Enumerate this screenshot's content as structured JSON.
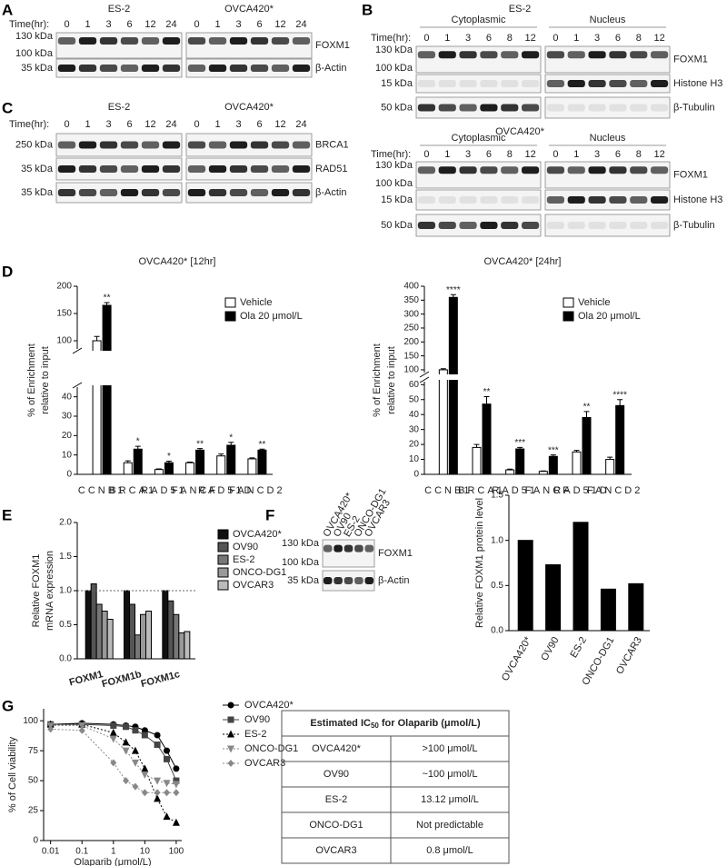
{
  "panel_labels": [
    "A",
    "B",
    "C",
    "D",
    "E",
    "F",
    "G"
  ],
  "blot_A": {
    "time_label": "Time(hr):",
    "groups": [
      {
        "name": "ES-2",
        "lanes": [
          "0",
          "1",
          "3",
          "6",
          "12",
          "24"
        ]
      },
      {
        "name": "OVCA420*",
        "lanes": [
          "0",
          "1",
          "3",
          "6",
          "12",
          "24"
        ]
      }
    ],
    "rows": [
      {
        "label": "FOXM1",
        "markers": [
          "130 kDa",
          "100 kDa"
        ]
      },
      {
        "label": "β-Actin",
        "markers": [
          "35 kDa"
        ]
      }
    ]
  },
  "blot_B_ES2": {
    "title": "ES-2",
    "time_label": "Time(hr):",
    "groups": [
      {
        "name": "Cytoplasmic",
        "lanes": [
          "0",
          "1",
          "3",
          "6",
          "8",
          "12"
        ]
      },
      {
        "name": "Nucleus",
        "lanes": [
          "0",
          "1",
          "3",
          "6",
          "8",
          "12"
        ]
      }
    ],
    "rows": [
      {
        "label": "FOXM1",
        "markers": [
          "130 kDa",
          "100 kDa"
        ]
      },
      {
        "label": "Histone H3",
        "markers": [
          "15 kDa"
        ]
      },
      {
        "label": "β-Tubulin",
        "markers": [
          "50 kDa"
        ]
      }
    ]
  },
  "blot_B_OVCA420": {
    "title": "OVCA420*",
    "time_label": "Time(hr):",
    "groups": [
      {
        "name": "Cytoplasmic",
        "lanes": [
          "0",
          "1",
          "3",
          "6",
          "8",
          "12"
        ]
      },
      {
        "name": "Nucleus",
        "lanes": [
          "0",
          "1",
          "3",
          "6",
          "8",
          "12"
        ]
      }
    ],
    "rows": [
      {
        "label": "FOXM1",
        "markers": [
          "130 kDa",
          "100 kDa"
        ]
      },
      {
        "label": "Histone H3",
        "markers": [
          "15 kDa"
        ]
      },
      {
        "label": "β-Tubulin",
        "markers": [
          "50 kDa"
        ]
      }
    ]
  },
  "blot_C": {
    "time_label": "Time(hr):",
    "groups": [
      {
        "name": "ES-2",
        "lanes": [
          "0",
          "1",
          "3",
          "6",
          "12",
          "24"
        ]
      },
      {
        "name": "OVCA420*",
        "lanes": [
          "0",
          "1",
          "3",
          "6",
          "12",
          "24"
        ]
      }
    ],
    "rows": [
      {
        "label": "BRCA1",
        "markers": [
          "250 kDa"
        ]
      },
      {
        "label": "RAD51",
        "markers": [
          "35 kDa"
        ]
      },
      {
        "label": "β-Actin",
        "markers": [
          "35 kDa"
        ]
      }
    ]
  },
  "blot_F": {
    "groups": [
      {
        "lanes": [
          "OVCA420*",
          "OV90",
          "ES-2",
          "ONCO-DG1",
          "OVCAR3"
        ]
      }
    ],
    "rows": [
      {
        "label": "FOXM1",
        "markers": [
          "130 kDa",
          "100 kDa"
        ]
      },
      {
        "label": "β-Actin",
        "markers": [
          "35 kDa"
        ]
      }
    ]
  },
  "chart_data": [
    {
      "type": "bar",
      "title": "OVCA420* [12hr]",
      "ylabel": [
        "% of Enrichment",
        "relative to input"
      ],
      "categories": [
        "CCNB1",
        "BRCA1",
        "RAD51",
        "FANCF",
        "RAD51D",
        "FANCD2"
      ],
      "series": [
        {
          "name": "Vehicle",
          "color": "#ffffff",
          "values": [
            100,
            6,
            2.5,
            6,
            9.5,
            8
          ],
          "errors": [
            8,
            1,
            0.3,
            0.3,
            1,
            0.5
          ]
        },
        {
          "name": "Ola 20 μmol/L",
          "color": "#000000",
          "values": [
            165,
            13,
            6,
            12.5,
            15,
            12.5
          ],
          "errors": [
            5,
            1.5,
            0.8,
            0.8,
            1.5,
            0.5
          ]
        }
      ],
      "annotations": [
        "**",
        "*",
        "*",
        "**",
        "*",
        "**"
      ],
      "ylim": [
        [
          0,
          45
        ],
        [
          85,
          200
        ]
      ],
      "yticks": [
        0,
        10,
        20,
        30,
        40,
        100,
        150,
        200
      ],
      "legend": "upper right"
    },
    {
      "type": "bar",
      "title": "OVCA420* [24hr]",
      "ylabel": [
        "% of Enrichment",
        "relative to input"
      ],
      "categories": [
        "CCNB1",
        "BRCA1",
        "RAD51",
        "FANCF",
        "RAD51D",
        "FANCD2"
      ],
      "series": [
        {
          "name": "Vehicle",
          "color": "#ffffff",
          "values": [
            100,
            18,
            3,
            2,
            15,
            10
          ],
          "errors": [
            4,
            2,
            0.5,
            0.3,
            1,
            1.5
          ]
        },
        {
          "name": "Ola 20 μmol/L",
          "color": "#000000",
          "values": [
            360,
            47,
            17,
            12,
            38,
            46
          ],
          "errors": [
            10,
            5,
            1,
            1,
            4,
            4
          ]
        }
      ],
      "annotations": [
        "****",
        "**",
        "***",
        "***",
        "**",
        "****"
      ],
      "ylim": [
        [
          0,
          62
        ],
        [
          90,
          400
        ]
      ],
      "yticks": [
        0,
        10,
        20,
        30,
        40,
        50,
        60,
        100,
        150,
        200,
        250,
        300,
        350,
        400
      ],
      "legend": "upper right"
    },
    {
      "type": "bar",
      "ylabel": [
        "Relative FOXM1",
        "mRNA expression"
      ],
      "categories": [
        "FOXM1",
        "FOXM1b",
        "FOXM1c"
      ],
      "series": [
        {
          "name": "OVCA420*",
          "color": "#111111",
          "values": [
            1.0,
            1.0,
            1.0
          ]
        },
        {
          "name": "OV90",
          "color": "#555555",
          "values": [
            1.1,
            0.8,
            0.85
          ]
        },
        {
          "name": "ES-2",
          "color": "#777777",
          "values": [
            0.8,
            0.35,
            0.65
          ]
        },
        {
          "name": "ONCO-DG1",
          "color": "#999999",
          "values": [
            0.7,
            0.65,
            0.38
          ]
        },
        {
          "name": "OVCAR3",
          "color": "#bbbbbb",
          "values": [
            0.58,
            0.7,
            0.4
          ]
        }
      ],
      "ylim": [
        0,
        2
      ],
      "yticks": [
        {
          "value": 0,
          "label": "0.0"
        },
        {
          "value": 0.5,
          "label": "0.5"
        },
        {
          "value": 1,
          "label": "1.0"
        },
        {
          "value": 1.5,
          "label": "1.5"
        },
        {
          "value": 2,
          "label": "2.0"
        }
      ],
      "hline": 1,
      "legend": "right"
    },
    {
      "type": "bar",
      "ylabel": "Relative FOXM1 protein level",
      "categories": [
        "OVCA420*",
        "OV90",
        "ES-2",
        "ONCO-DG1",
        "OVCAR3"
      ],
      "values": [
        1.0,
        0.73,
        1.2,
        0.46,
        0.52
      ],
      "color": "#000000",
      "ylim": [
        0,
        1.5
      ],
      "yticks": [
        {
          "value": 0,
          "label": "0.0"
        },
        {
          "value": 0.5,
          "label": "0.5"
        },
        {
          "value": 1,
          "label": "1.0"
        },
        {
          "value": 1.5,
          "label": "1.5"
        }
      ]
    },
    {
      "type": "line",
      "xlabel": "Olaparib (μmol/L)",
      "ylabel": "% of Cell viability",
      "xscale": "log",
      "x": [
        0.01,
        0.1,
        1,
        2.5,
        5,
        10,
        25,
        50,
        100
      ],
      "xlim": [
        0.006,
        150
      ],
      "xticks": [
        0.01,
        0.1,
        1,
        10,
        100
      ],
      "ylim": [
        0,
        110
      ],
      "yticks": [
        0,
        25,
        50,
        75,
        100
      ],
      "legend": "right",
      "series": [
        {
          "name": "OVCA420*",
          "color": "#000000",
          "marker": "circle",
          "linestyle": "solid",
          "values": [
            97,
            98,
            97,
            96,
            95,
            92,
            88,
            75,
            60
          ]
        },
        {
          "name": "OV90",
          "color": "#444444",
          "marker": "square",
          "linestyle": "solid",
          "values": [
            97,
            97,
            96,
            95,
            92,
            88,
            80,
            68,
            50
          ]
        },
        {
          "name": "ES-2",
          "color": "#000000",
          "marker": "triangle-up",
          "linestyle": "dotted",
          "values": [
            97,
            97,
            90,
            82,
            75,
            60,
            35,
            20,
            15
          ]
        },
        {
          "name": "ONCO-DG1",
          "color": "#888888",
          "marker": "triangle-down",
          "linestyle": "dotted",
          "values": [
            96,
            96,
            85,
            75,
            65,
            55,
            50,
            48,
            47
          ]
        },
        {
          "name": "OVCAR3",
          "color": "#888888",
          "marker": "diamond",
          "linestyle": "dotted",
          "values": [
            93,
            92,
            65,
            50,
            45,
            40,
            40,
            40,
            40
          ]
        }
      ]
    }
  ],
  "table": {
    "header": [
      "Estimated IC",
      "50",
      "for Olaparib (μmol/L)"
    ],
    "rows": [
      [
        "OVCA420*",
        ">100 μmol/L"
      ],
      [
        "OV90",
        "~100 μmol/L"
      ],
      [
        "ES-2",
        "13.12 μmol/L"
      ],
      [
        "ONCO-DG1",
        "Not predictable"
      ],
      [
        "OVCAR3",
        "0.8 μmol/L"
      ]
    ]
  }
}
